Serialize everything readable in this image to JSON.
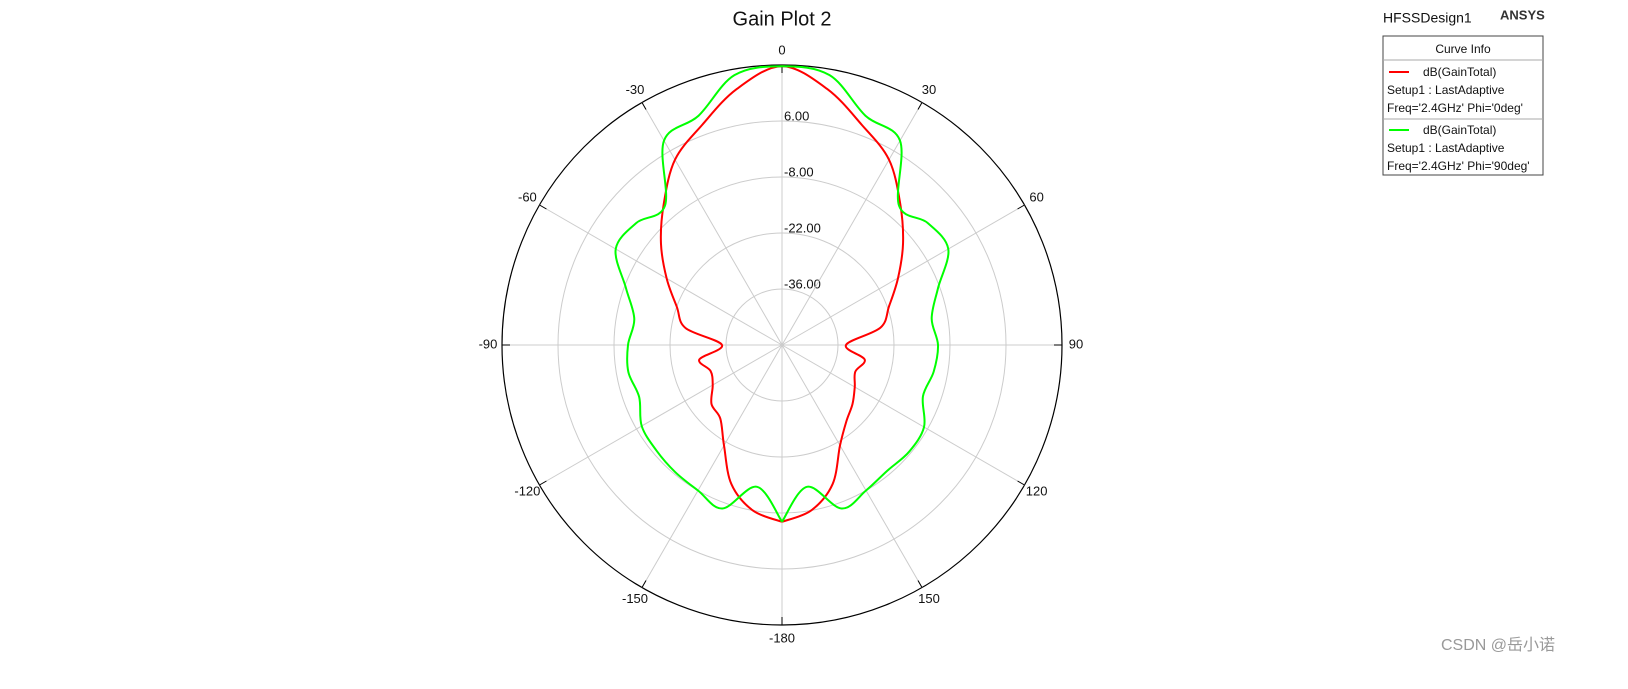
{
  "design": "HFSSDesign1",
  "brand": "ANSYS",
  "watermark": "CSDN @岳小诺",
  "chart_data": {
    "type": "polar",
    "title": "Gain Plot 2",
    "legend_title": "Curve Info",
    "theta": [
      -180,
      -170,
      -160,
      -150,
      -140,
      -130,
      -120,
      -110,
      -100,
      -90,
      -80,
      -70,
      -60,
      -50,
      -40,
      -30,
      -20,
      -10,
      0,
      10,
      20,
      30,
      40,
      50,
      60,
      70,
      80,
      90,
      100,
      110,
      120,
      130,
      140,
      150,
      160,
      170,
      180
    ],
    "rlim": [
      -50,
      20
    ],
    "rticks": [
      {
        "value": -36,
        "label": "-36.00"
      },
      {
        "value": -22,
        "label": "-22.00"
      },
      {
        "value": -8,
        "label": "-8.00"
      },
      {
        "value": 6,
        "label": "6.00"
      }
    ],
    "thetaticks": [
      0,
      30,
      60,
      90,
      120,
      150,
      -180,
      -150,
      -120,
      -90,
      -60,
      -30
    ],
    "grid": true,
    "series": [
      {
        "name": "dB(GainTotal)",
        "setup": "Setup1 : LastAdaptive",
        "context": "Freq='2.4GHz' Phi='0deg'",
        "color": "#ff0000",
        "values": [
          -5.8,
          -8,
          -13,
          -21,
          -26,
          -27,
          -30,
          -31,
          -29,
          -35,
          -25.5,
          -22,
          -16.7,
          -10.5,
          -4,
          3.5,
          8.5,
          15,
          19.7,
          15,
          8.5,
          3.5,
          -4,
          -10.5,
          -16.5,
          -21.5,
          -25,
          -34,
          -29,
          -30.5,
          -29,
          -27,
          -25,
          -21,
          -13,
          -8,
          -5.8
        ]
      },
      {
        "name": "dB(GainTotal)",
        "setup": "Setup1 : LastAdaptive",
        "context": "Freq='2.4GHz' Phi='90deg'",
        "color": "#00ff00",
        "values": [
          -5.8,
          -14,
          -6.5,
          -8,
          -8.5,
          -9,
          -9.5,
          -12,
          -11,
          -11.5,
          -12.5,
          -8.5,
          -2,
          -2.5,
          -4.5,
          9,
          11,
          18.5,
          19.7,
          18.5,
          11,
          9,
          -4.5,
          -2.5,
          -2,
          -8.5,
          -12,
          -11,
          -11.5,
          -12.5,
          -9,
          -8.5,
          -9,
          -8,
          -6.5,
          -14,
          -5.8
        ]
      }
    ]
  }
}
